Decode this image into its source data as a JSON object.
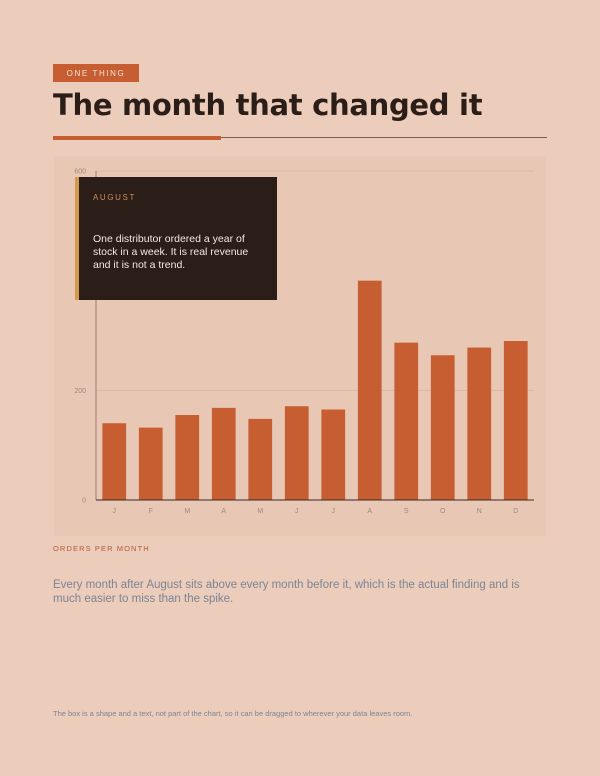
{
  "header": {
    "tag": "ONE THING",
    "title": "The month that changed it"
  },
  "callout": {
    "title": "AUGUST",
    "text": "One distributor ordered a year of stock in a week. It is real revenue and it is not a trend."
  },
  "caption": "ORDERS PER MONTH",
  "finding": "Every month after August sits above every month before it, which is the actual finding and is much easier to miss than the spike.",
  "footnote": "The box is a shape and a text, not part of the chart, so it can be dragged to wherever your data leaves room.",
  "colors": {
    "bar": "#C65E32",
    "background": "#ECCCBA",
    "panel": "#E8C7B4",
    "callout": "#2B1D17",
    "accent": "#D39A4E"
  },
  "chart_data": {
    "type": "bar",
    "categories": [
      "J",
      "F",
      "M",
      "A",
      "M",
      "J",
      "J",
      "A",
      "S",
      "O",
      "N",
      "D"
    ],
    "values": [
      140,
      132,
      155,
      168,
      148,
      171,
      165,
      400,
      287,
      264,
      278,
      290
    ],
    "yticks": [
      0,
      200,
      600
    ],
    "ylim": [
      0,
      600
    ],
    "grid": true
  }
}
